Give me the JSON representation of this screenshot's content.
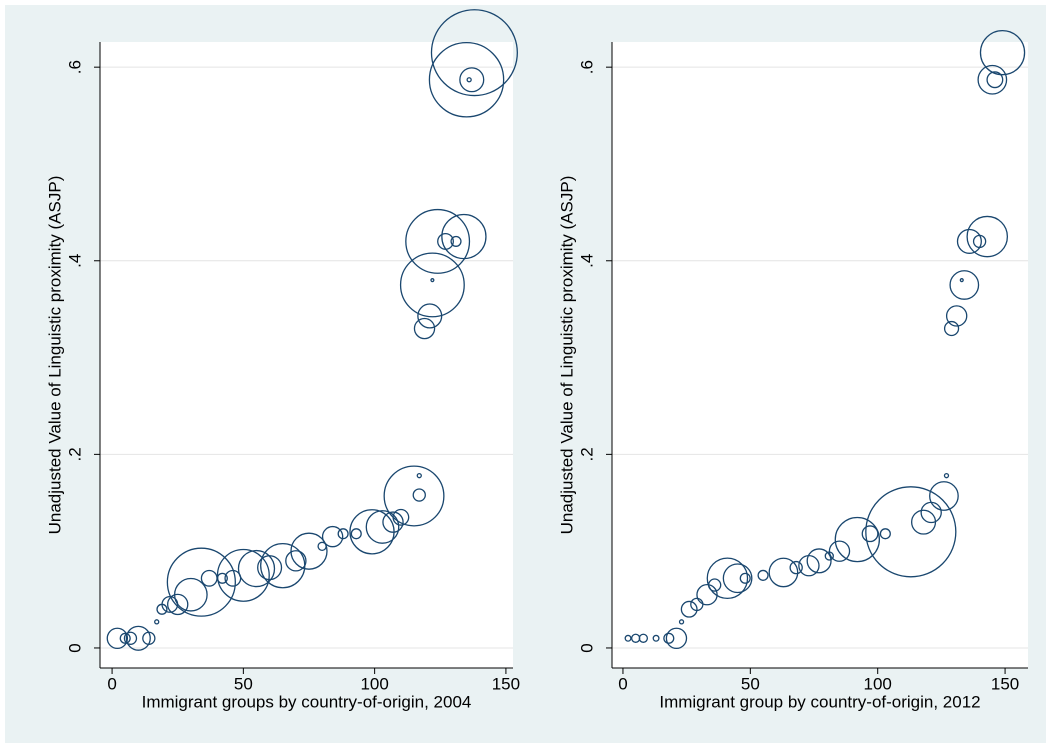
{
  "chart_data": [
    {
      "type": "scatter",
      "color": "#1a476f",
      "grid": true,
      "xlabel": "Immigrant groups by country-of-origin, 2004",
      "ylabel": "Unadjusted Value of Linguistic proximity (ASJP)",
      "xlim": [
        -4.6,
        152.7
      ],
      "ylim": [
        -0.0207,
        0.626
      ],
      "xticks": [
        0,
        50,
        100,
        150
      ],
      "yticks": [
        0,
        {
          "value": 0.2,
          "label": ".2"
        },
        {
          "value": 0.4,
          "label": ".4"
        },
        {
          "value": 0.6,
          "label": ".6"
        }
      ],
      "x": [
        2,
        5,
        7,
        10,
        14,
        17,
        19,
        22,
        25,
        30,
        34,
        37,
        42,
        46,
        50,
        55,
        60,
        65,
        70,
        75,
        80,
        84,
        88,
        93,
        99,
        103,
        107,
        110,
        115,
        117,
        117,
        119,
        121,
        122,
        122,
        124,
        127,
        131,
        134,
        135,
        138,
        137,
        136
      ],
      "values": [
        0.01,
        0.01,
        0.01,
        0.01,
        0.01,
        0.027,
        0.04,
        0.045,
        0.045,
        0.055,
        0.068,
        0.072,
        0.072,
        0.072,
        0.075,
        0.082,
        0.083,
        0.085,
        0.09,
        0.1,
        0.105,
        0.115,
        0.118,
        0.118,
        0.12,
        0.125,
        0.13,
        0.135,
        0.157,
        0.158,
        0.178,
        0.33,
        0.343,
        0.375,
        0.38,
        0.42,
        0.42,
        0.42,
        0.425,
        0.587,
        0.615,
        0.587,
        0.587
      ],
      "sizes": [
        5,
        1.2,
        1.8,
        7,
        1.8,
        0.2,
        1.2,
        3,
        5,
        13,
        57,
        3,
        1.2,
        3,
        33,
        16,
        7,
        24,
        5,
        16,
        0.8,
        5,
        1.2,
        1.2,
        24,
        13,
        5,
        3,
        44,
        1.8,
        0.2,
        5,
        7,
        50,
        0.1,
        50,
        3,
        1.2,
        24,
        68,
        91,
        7,
        0.2
      ]
    },
    {
      "type": "scatter",
      "color": "#1a476f",
      "grid": true,
      "xlabel": "Immigrant group by country-of-origin, 2012",
      "ylabel": "Unadjusted Value of Linguistic proximity (ASJP)",
      "xlim": [
        -4.3,
        159
      ],
      "ylim": [
        -0.0207,
        0.626
      ],
      "xticks": [
        0,
        50,
        100,
        150
      ],
      "yticks": [
        0,
        {
          "value": 0.2,
          "label": ".2"
        },
        {
          "value": 0.4,
          "label": ".4"
        },
        {
          "value": 0.6,
          "label": ".6"
        }
      ],
      "x": [
        2,
        5,
        8,
        13,
        18,
        21,
        23,
        26,
        29,
        33,
        36,
        41,
        45,
        48,
        55,
        63,
        68,
        73,
        77,
        81,
        85,
        92,
        97,
        103,
        113,
        118,
        121,
        126,
        127,
        129,
        131,
        134,
        133,
        136,
        140,
        143,
        145,
        146,
        149
      ],
      "values": [
        0.01,
        0.01,
        0.01,
        0.01,
        0.01,
        0.01,
        0.027,
        0.04,
        0.045,
        0.055,
        0.065,
        0.072,
        0.072,
        0.072,
        0.075,
        0.078,
        0.083,
        0.085,
        0.09,
        0.095,
        0.1,
        0.112,
        0.118,
        0.118,
        0.12,
        0.13,
        0.14,
        0.157,
        0.178,
        0.33,
        0.343,
        0.375,
        0.38,
        0.42,
        0.42,
        0.425,
        0.587,
        0.587,
        0.615
      ],
      "sizes": [
        0.4,
        0.8,
        0.8,
        0.4,
        1.2,
        5,
        0.2,
        3,
        1.8,
        5,
        1.8,
        20,
        10,
        1.2,
        1.2,
        10,
        1.8,
        5,
        7,
        0.8,
        5,
        24,
        3,
        1.2,
        100,
        7,
        5,
        10,
        0.2,
        2.4,
        5,
        10,
        0.1,
        7,
        1.8,
        20,
        10,
        3,
        24
      ]
    }
  ]
}
